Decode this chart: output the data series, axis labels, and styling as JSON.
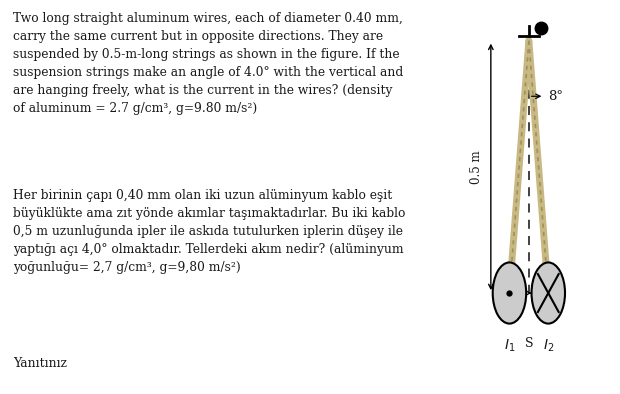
{
  "bg_color": "#ffffff",
  "text_en": "Two long straight aluminum wires, each of diameter 0.40 mm,\ncarry the same current but in opposite directions. They are\nsuspended by 0.5-m-long strings as shown in the figure. If the\nsuspension strings make an angle of 4.0° with the vertical and\nare hanging freely, what is the current in the wires? (density\nof aluminum = 2.7 g/cm³, g=9.80 m/s²)",
  "text_tr": "Her birinin çapı 0,40 mm olan iki uzun alüminyum kablo eşit\nbüyüklükte ama zıt yönde akımlar taşımaktadırlar. Bu iki kablo\n0,5 m uzunluğunda ipler ile askıda tutulurken iplerin düşey ile\nyaptığı açı 4,0° olmaktadır. Tellerdeki akım nedir? (alüminyum\nyoğunluğu= 2,7 g/cm³, g=9,80 m/s²)",
  "text_bottom": "Yanıtınız",
  "label_05m": "0.5 m",
  "label_angle": "8°",
  "label_I1": "$I_1$",
  "label_I2": "$I_2$",
  "label_S": "S",
  "string_color": "#c8b882",
  "string_color2": "#a09060",
  "text_color": "#1a1a1a",
  "circle_face": "#cccccc",
  "dashed_color": "#333333"
}
